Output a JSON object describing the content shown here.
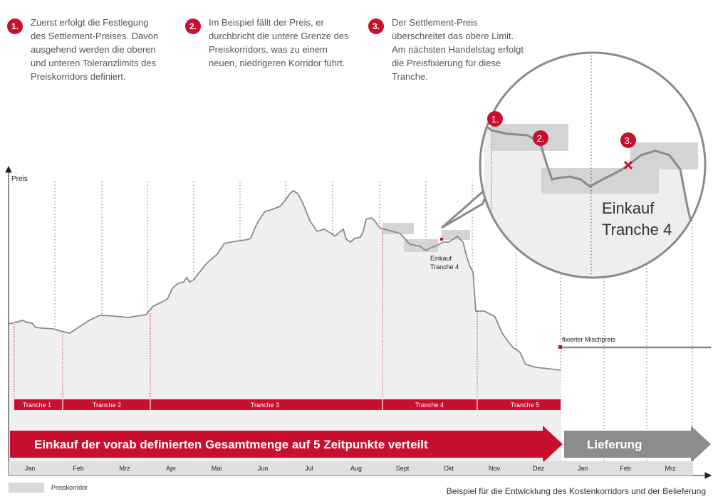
{
  "steps": [
    {
      "num": "1.",
      "text": "Zuerst erfolgt die Festlegung des Settlement-Preises. Davon ausgehend werden die oberen und unteren Toleranzlimits des Preiskorridors definiert."
    },
    {
      "num": "2.",
      "text": "Im Beispiel fällt der Preis, er durchbricht die untere Grenze des Preiskorridors, was zu einem neuen, niedrigeren Korridor führt."
    },
    {
      "num": "3.",
      "text": "Der Settlement-Preis überschreitet das obere Limit. Am nächsten Handelstag erfolgt die Preisfixierung für diese Tranche."
    }
  ],
  "axis": {
    "y_label": "Preis"
  },
  "months": [
    "Jan",
    "Feb",
    "Mrz",
    "Apr",
    "Mai",
    "Jun",
    "Jul",
    "Aug",
    "Sept",
    "Okt",
    "Nov",
    "Dez",
    "Jan",
    "Feb",
    "Mrz"
  ],
  "tranches": [
    "Tranche 1",
    "Tranche 2",
    "Tranche 3",
    "Tranche 4",
    "Tranche 5"
  ],
  "arrows": {
    "purchase": "Einkauf der vorab definierten Gesamtmenge auf 5 Zeitpunkte verteilt",
    "delivery": "Lieferung"
  },
  "annotations": {
    "small_purchase_line1": "Einkauf",
    "small_purchase_line2": "Tranche 4",
    "mixed_price": "fixierter Mischpreis"
  },
  "zoom": {
    "markers": [
      "1.",
      "2.",
      "3."
    ],
    "label_line1": "Einkauf",
    "label_line2": "Tranche 4"
  },
  "legend": {
    "label": "Preiskorridor"
  },
  "caption": "Beispiel für die Entwicklung des Kostenkorridors und der Belieferung",
  "colors": {
    "accent_red": "#c8102e",
    "gray_arrow": "#8c8c8c",
    "corridor": "#d9d9d9",
    "area_fill": "#efefef",
    "line": "#8a8a8a"
  }
}
